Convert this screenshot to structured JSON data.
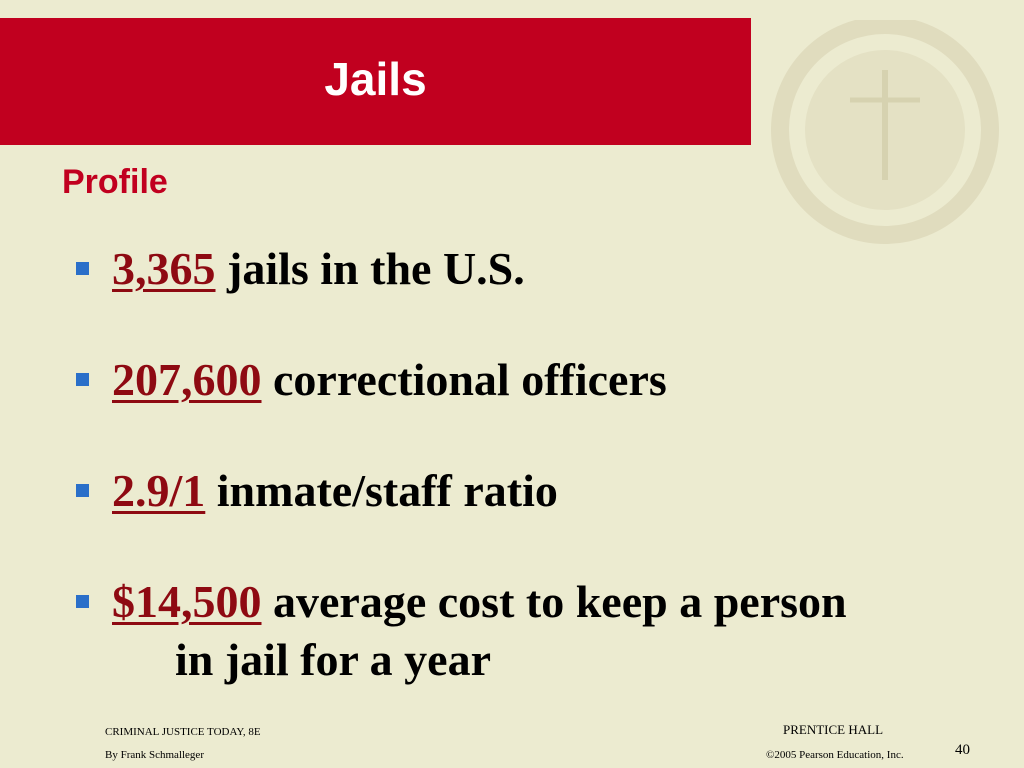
{
  "header": {
    "title": "Jails",
    "subtitle": "Profile"
  },
  "bullets": [
    {
      "highlight": "3,365",
      "text": "jails in the U.S."
    },
    {
      "highlight": "207,600",
      "text": "correctional officers"
    },
    {
      "highlight": "2.9/1",
      "text": "inmate/staff ratio"
    },
    {
      "highlight": "$14,500",
      "text": "average cost to keep a person in jail for a year"
    }
  ],
  "footer": {
    "book": "CRIMINAL JUSTICE TODAY, 8E",
    "author": "By Frank Schmalleger",
    "publisher": "PRENTICE HALL",
    "copyright": "©2005 Pearson Education, Inc.",
    "page": "40"
  }
}
